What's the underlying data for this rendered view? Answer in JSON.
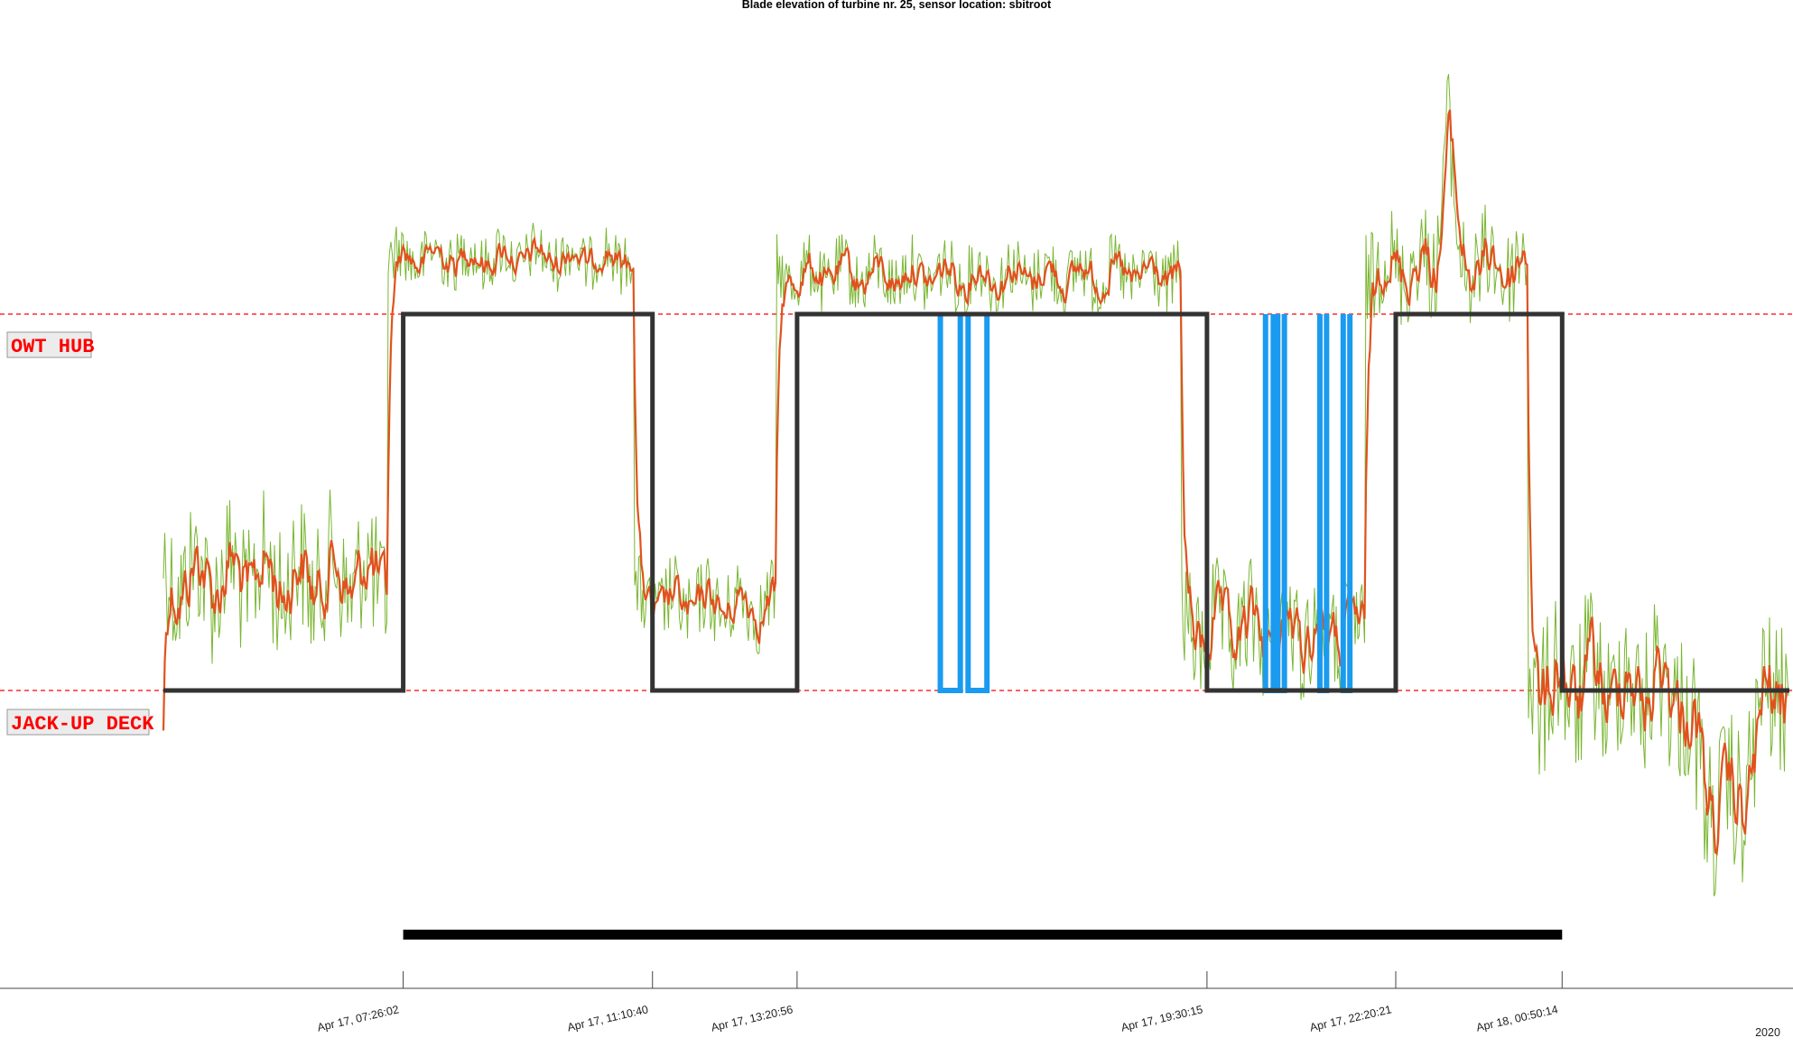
{
  "chart_data": {
    "type": "line",
    "title": "Blade elevation of turbine nr. 25, sensor location: sbitroot",
    "xlabel": "",
    "ylabel": "",
    "year_label": "2020",
    "x_ticks": [
      "Apr 17, 07:26:02",
      "Apr 17, 11:10:40",
      "Apr 17, 13:20:56",
      "Apr 17, 19:30:15",
      "Apr 17, 22:20:21",
      "Apr 18, 00:50:14"
    ],
    "reference_lines": [
      {
        "label": "OWT HUB",
        "level": "hub",
        "color": "#ff0000",
        "style": "dashed"
      },
      {
        "label": "JACK-UP DECK",
        "level": "deck",
        "color": "#ff0000",
        "style": "dashed"
      }
    ],
    "series": [
      {
        "role": "state",
        "color": "#333333",
        "points": [
          [
            "04-17 03:50",
            "deck"
          ],
          [
            "04-17 07:26:02",
            "deck"
          ],
          [
            "04-17 07:26:02",
            "hub"
          ],
          [
            "04-17 11:10:40",
            "hub"
          ],
          [
            "04-17 11:10:40",
            "deck"
          ],
          [
            "04-17 13:20:56",
            "deck"
          ],
          [
            "04-17 13:20:56",
            "hub"
          ],
          [
            "04-17 19:30:15",
            "hub"
          ],
          [
            "04-17 19:30:15",
            "deck"
          ],
          [
            "04-17 22:20:21",
            "deck"
          ],
          [
            "04-17 22:20:21",
            "hub"
          ],
          [
            "04-18 00:50:14",
            "hub"
          ],
          [
            "04-18 00:50:14",
            "deck"
          ],
          [
            "04-18 04:15",
            "deck"
          ]
        ]
      },
      {
        "role": "transitions",
        "color": "#1a9bf0",
        "intervals": [
          [
            "04-17 15:30",
            "04-17 15:48"
          ],
          [
            "04-17 15:55",
            "04-17 16:12"
          ],
          [
            "04-17 20:23",
            "04-17 20:30"
          ],
          [
            "04-17 20:34",
            "04-17 20:40"
          ],
          [
            "04-17 21:12",
            "04-17 21:18"
          ],
          [
            "04-17 21:33",
            "04-17 21:39"
          ]
        ]
      },
      {
        "role": "measurement-raw",
        "color": "#7ab632"
      },
      {
        "role": "measurement-smoothed",
        "color": "#e0521d"
      }
    ],
    "period_bar": {
      "start": "04-17 07:26:02",
      "end": "04-18 00:50:14",
      "color": "#000000"
    },
    "grid": false
  }
}
